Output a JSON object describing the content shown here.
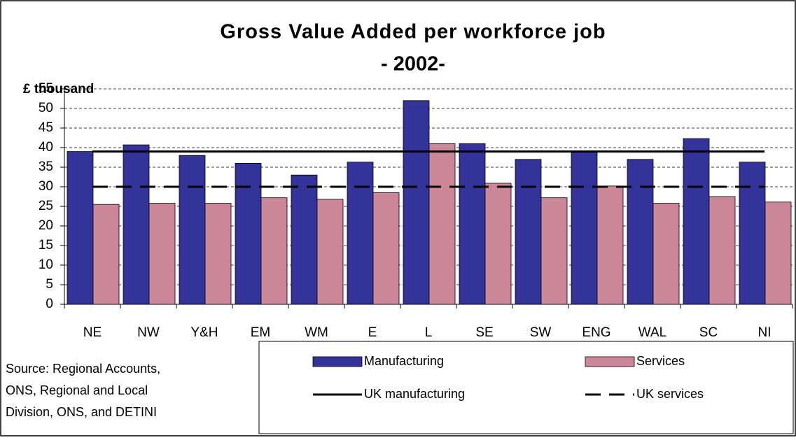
{
  "chart_data": {
    "type": "bar",
    "title": "Gross Value Added per workforce job",
    "subtitle": "- 2002-",
    "y_label": "£ thousand",
    "categories": [
      "NE",
      "NW",
      "Y&H",
      "EM",
      "WM",
      "E",
      "L",
      "SE",
      "SW",
      "ENG",
      "WAL",
      "SC",
      "NI"
    ],
    "series": [
      {
        "name": "Manufacturing",
        "type": "bar",
        "color": "#333399",
        "values": [
          39,
          40.7,
          38,
          36,
          33,
          36.3,
          52,
          41,
          37,
          38.8,
          37,
          42.3,
          36.3
        ]
      },
      {
        "name": "Services",
        "type": "bar",
        "color": "#cc8899",
        "values": [
          25.5,
          25.8,
          25.8,
          27.2,
          26.8,
          28.5,
          41,
          30.9,
          27.2,
          30.2,
          25.8,
          27.5,
          26.1
        ]
      },
      {
        "name": "UK manufacturing",
        "type": "line",
        "color": "#000000",
        "values": [
          39,
          39,
          39,
          39,
          39,
          39,
          39,
          39,
          39,
          39,
          39,
          39,
          39
        ]
      },
      {
        "name": "UK services",
        "type": "dashed-line",
        "color": "#000000",
        "values": [
          30,
          30,
          30,
          30,
          30,
          30,
          30,
          30,
          30,
          30,
          30,
          30,
          30
        ]
      }
    ],
    "ylim": [
      0,
      55
    ],
    "yticks": [
      0,
      5,
      10,
      15,
      20,
      25,
      30,
      35,
      40,
      45,
      50,
      55
    ],
    "grid": true,
    "legend": "bottom-right",
    "source": [
      "Source: Regional Accounts,",
      "ONS, Regional and Local",
      "Division,  ONS, and DETINI"
    ]
  }
}
